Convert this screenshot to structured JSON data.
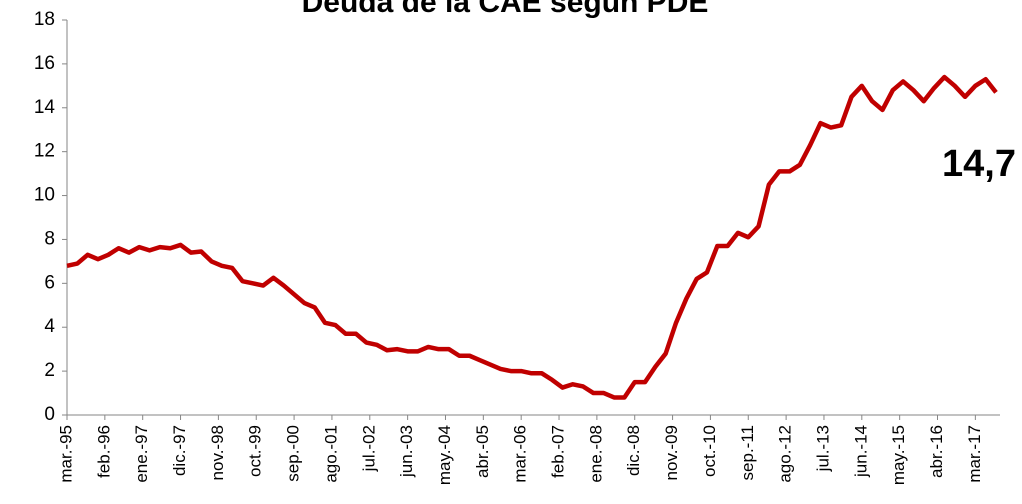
{
  "chart_data": {
    "type": "line",
    "title": "Deuda de la CAE según PDE",
    "annotation": "14,7",
    "x": [
      0,
      3,
      6,
      9,
      12,
      15,
      18,
      21,
      24,
      27,
      30,
      33,
      36,
      39,
      42,
      45,
      48,
      51,
      54,
      57,
      60,
      63,
      66,
      69,
      72,
      75,
      78,
      81,
      84,
      87,
      90,
      93,
      96,
      99,
      102,
      105,
      108,
      111,
      114,
      117,
      120,
      123,
      126,
      129,
      132,
      135,
      138,
      141,
      144,
      147,
      150,
      153,
      156,
      159,
      162,
      165,
      168,
      171,
      174,
      177,
      180,
      183,
      186,
      189,
      192,
      195,
      198,
      201,
      204,
      207,
      210,
      213,
      216,
      219,
      222,
      225,
      228,
      231,
      234,
      237,
      240,
      243,
      246,
      249,
      252,
      255,
      258,
      261,
      264,
      267,
      270
    ],
    "series": [
      {
        "name": "Deuda",
        "color": "#c00000",
        "values": [
          6.8,
          6.9,
          7.3,
          7.1,
          7.3,
          7.6,
          7.4,
          7.65,
          7.5,
          7.65,
          7.6,
          7.75,
          7.4,
          7.45,
          7.0,
          6.8,
          6.7,
          6.1,
          6.0,
          5.9,
          6.25,
          5.9,
          5.5,
          5.1,
          4.9,
          4.2,
          4.1,
          3.7,
          3.7,
          3.3,
          3.2,
          2.95,
          3.0,
          2.9,
          2.9,
          3.1,
          3.0,
          3.0,
          2.7,
          2.7,
          2.5,
          2.3,
          2.1,
          2.0,
          2.0,
          1.9,
          1.9,
          1.6,
          1.25,
          1.4,
          1.3,
          1.0,
          1.0,
          0.8,
          0.8,
          1.5,
          1.5,
          2.2,
          2.8,
          4.2,
          5.3,
          6.2,
          6.5,
          7.7,
          7.7,
          8.3,
          8.1,
          8.6,
          10.5,
          11.1,
          11.1,
          11.4,
          12.3,
          13.3,
          13.1,
          13.2,
          14.5,
          15.0,
          14.3,
          13.9,
          14.8,
          15.2,
          14.8,
          14.3,
          14.9,
          15.4,
          15.0,
          14.5,
          15.0,
          15.3,
          14.7
        ]
      }
    ],
    "xlim": [
      0,
      270
    ],
    "xticks": [
      {
        "value": 0,
        "label": "mar.-95"
      },
      {
        "value": 11,
        "label": "feb.-96"
      },
      {
        "value": 22,
        "label": "ene.-97"
      },
      {
        "value": 33,
        "label": "dic.-97"
      },
      {
        "value": 44,
        "label": "nov.-98"
      },
      {
        "value": 55,
        "label": "oct.-99"
      },
      {
        "value": 66,
        "label": "sep.-00"
      },
      {
        "value": 77,
        "label": "ago.-01"
      },
      {
        "value": 88,
        "label": "jul.-02"
      },
      {
        "value": 99,
        "label": "jun.-03"
      },
      {
        "value": 110,
        "label": "may.-04"
      },
      {
        "value": 121,
        "label": "abr.-05"
      },
      {
        "value": 132,
        "label": "mar.-06"
      },
      {
        "value": 143,
        "label": "feb.-07"
      },
      {
        "value": 154,
        "label": "ene.-08"
      },
      {
        "value": 165,
        "label": "dic.-08"
      },
      {
        "value": 176,
        "label": "nov.-09"
      },
      {
        "value": 187,
        "label": "oct.-10"
      },
      {
        "value": 198,
        "label": "sep.-11"
      },
      {
        "value": 209,
        "label": "ago.-12"
      },
      {
        "value": 220,
        "label": "jul.-13"
      },
      {
        "value": 231,
        "label": "jun.-14"
      },
      {
        "value": 242,
        "label": "may.-15"
      },
      {
        "value": 253,
        "label": "abr.-16"
      },
      {
        "value": 264,
        "label": "mar.-17"
      }
    ],
    "ylim": [
      0,
      18
    ],
    "yticks": [
      0,
      2,
      4,
      6,
      8,
      10,
      12,
      14,
      16,
      18
    ],
    "grid": false
  }
}
